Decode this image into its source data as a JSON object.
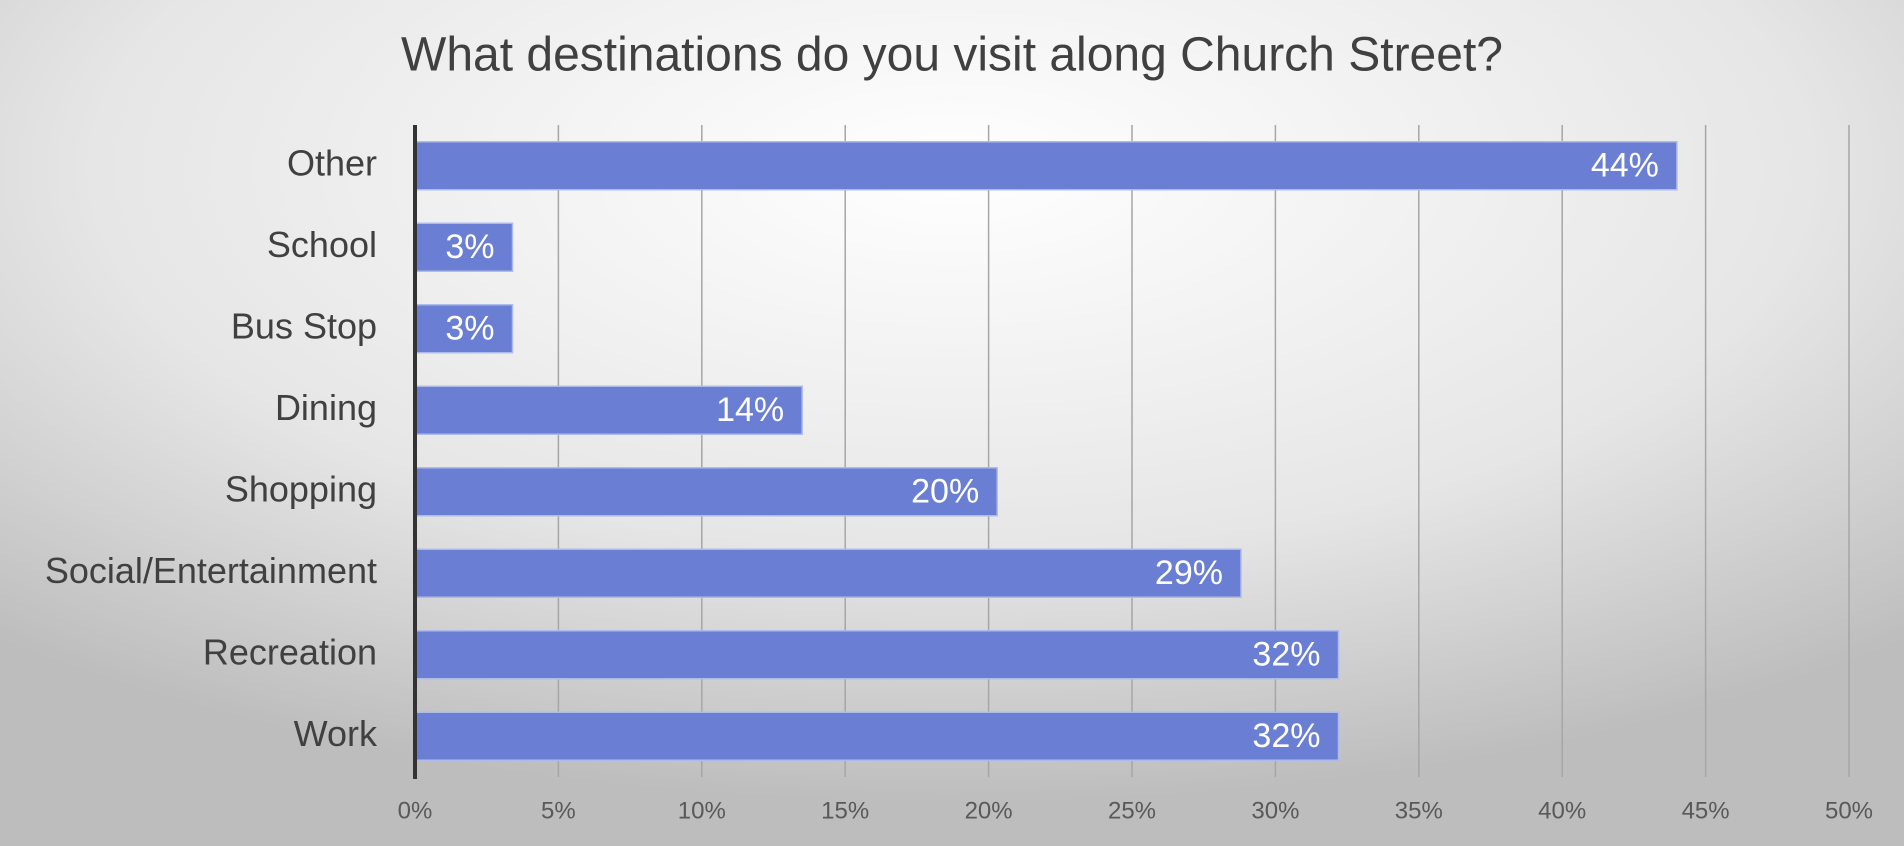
{
  "chart_data": {
    "type": "bar",
    "orientation": "horizontal",
    "title": "What destinations do you visit along Church Street?",
    "categories": [
      "Other",
      "School",
      "Bus Stop",
      "Dining",
      "Shopping",
      "Social/Entertainment",
      "Recreation",
      "Work"
    ],
    "values": [
      44,
      3.4,
      3.4,
      13.5,
      20.3,
      28.8,
      32.2,
      32.2
    ],
    "value_labels": [
      "44%",
      "3%",
      "3%",
      "14%",
      "20%",
      "29%",
      "32%",
      "32%"
    ],
    "color": "#6a7fd3",
    "xlim": [
      0,
      50
    ],
    "xticks": [
      {
        "value": 0,
        "label": "0%"
      },
      {
        "value": 5,
        "label": "5%"
      },
      {
        "value": 10,
        "label": "10%"
      },
      {
        "value": 15,
        "label": "15%"
      },
      {
        "value": 20,
        "label": "20%"
      },
      {
        "value": 25,
        "label": "25%"
      },
      {
        "value": 30,
        "label": "30%"
      },
      {
        "value": 35,
        "label": "35%"
      },
      {
        "value": 40,
        "label": "40%"
      },
      {
        "value": 45,
        "label": "45%"
      },
      {
        "value": 50,
        "label": "50%"
      }
    ],
    "grid": true
  }
}
